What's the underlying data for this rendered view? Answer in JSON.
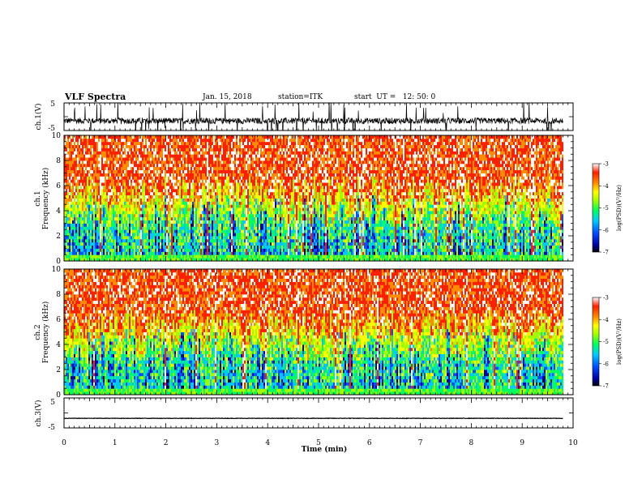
{
  "header": {
    "title": "VLF Spectra",
    "date": "Jan. 15, 2018",
    "station": "station=ITK",
    "start": "start  UT =   12: 50: 0"
  },
  "colorbar": {
    "label": "log(PSD)(V²/Hz)",
    "ticks": [
      "-3",
      "-4",
      "-5",
      "-6",
      "-7"
    ]
  },
  "chart_data": [
    {
      "type": "line",
      "panel": "ch1-waveform",
      "ylabel": "ch.1(V)",
      "ylim": [
        -5,
        5
      ],
      "yticks": [
        "5",
        "-5"
      ],
      "x_range_min": [
        0,
        9.8
      ],
      "baseline": -1.5,
      "color": "#000000"
    },
    {
      "type": "heatmap",
      "panel": "ch1-spectrogram",
      "ylabel": "ch.1\nFrequency (kHz)",
      "ylim": [
        0,
        10
      ],
      "yticks": [
        "0",
        "2",
        "4",
        "6",
        "8",
        "10"
      ],
      "x_range_min": [
        0,
        9.8
      ],
      "zlim": [
        -7,
        -3
      ],
      "colormap": [
        "#000000",
        "#0000a0",
        "#0050ff",
        "#00c8ff",
        "#00ff60",
        "#a0ff00",
        "#ffff00",
        "#ff8c00",
        "#ff2000",
        "#ffffff"
      ]
    },
    {
      "type": "heatmap",
      "panel": "ch2-spectrogram",
      "ylabel": "ch.2\nFrequency (kHz)",
      "ylim": [
        0,
        10
      ],
      "yticks": [
        "0",
        "2",
        "4",
        "6",
        "8",
        "10"
      ],
      "x_range_min": [
        0,
        9.8
      ],
      "zlim": [
        -7,
        -3
      ],
      "colormap": [
        "#000000",
        "#0000a0",
        "#0050ff",
        "#00c8ff",
        "#00ff60",
        "#a0ff00",
        "#ffff00",
        "#ff8c00",
        "#ff2000",
        "#ffffff"
      ]
    },
    {
      "type": "line",
      "panel": "ch3-waveform",
      "ylabel": "ch.3(V)",
      "ylim": [
        -5,
        5
      ],
      "yticks": [
        "5",
        "-5"
      ],
      "x_range_min": [
        0,
        9.8
      ],
      "baseline": -1.8,
      "color": "#000000"
    }
  ],
  "xaxis": {
    "label": "Time (min)",
    "range": [
      0,
      10
    ],
    "ticks": [
      "0",
      "1",
      "2",
      "3",
      "4",
      "5",
      "6",
      "7",
      "8",
      "9",
      "10"
    ]
  }
}
